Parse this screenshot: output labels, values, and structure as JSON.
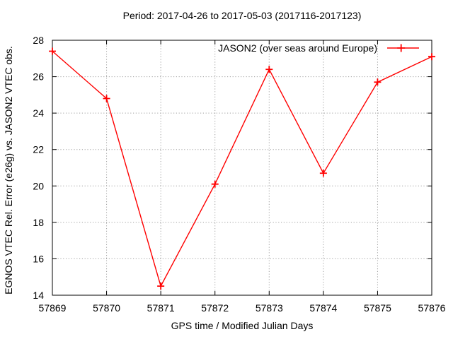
{
  "title": "Period: 2017-04-26 to 2017-05-03 (2017116-2017123)",
  "legend": {
    "label": "JASON2 (over seas around Europe)"
  },
  "axes": {
    "x_label": "GPS time / Modified Julian Days",
    "y_label": "EGNOS VTEC Rel. Error (e26g) vs. JASON2 VTEC obs."
  },
  "colors": {
    "series": "#ff0000",
    "grid": "#a0a0a0",
    "frame": "#000000",
    "text": "#000000",
    "background": "#ffffff"
  },
  "chart_data": {
    "type": "line",
    "title": "Period: 2017-04-26 to 2017-05-03 (2017116-2017123)",
    "xlabel": "GPS time / Modified Julian Days",
    "ylabel": "EGNOS VTEC Rel. Error (e26g) vs. JASON2 VTEC obs.",
    "series": [
      {
        "name": "JASON2 (over seas around Europe)",
        "x": [
          57869,
          57870,
          57871,
          57872,
          57873,
          57874,
          57875,
          57876
        ],
        "values": [
          27.4,
          24.8,
          14.5,
          20.1,
          26.4,
          20.7,
          25.7,
          27.1
        ],
        "color": "#ff0000",
        "marker": "plus"
      }
    ],
    "xlim": [
      57869,
      57876
    ],
    "ylim": [
      14,
      28
    ],
    "x_ticks": [
      57869,
      57870,
      57871,
      57872,
      57873,
      57874,
      57875,
      57876
    ],
    "y_ticks": [
      14,
      16,
      18,
      20,
      22,
      24,
      26,
      28
    ],
    "grid": true,
    "grid_style": "dotted",
    "legend_position": "top-right-inside",
    "tick_style": "inward-mirrored"
  }
}
